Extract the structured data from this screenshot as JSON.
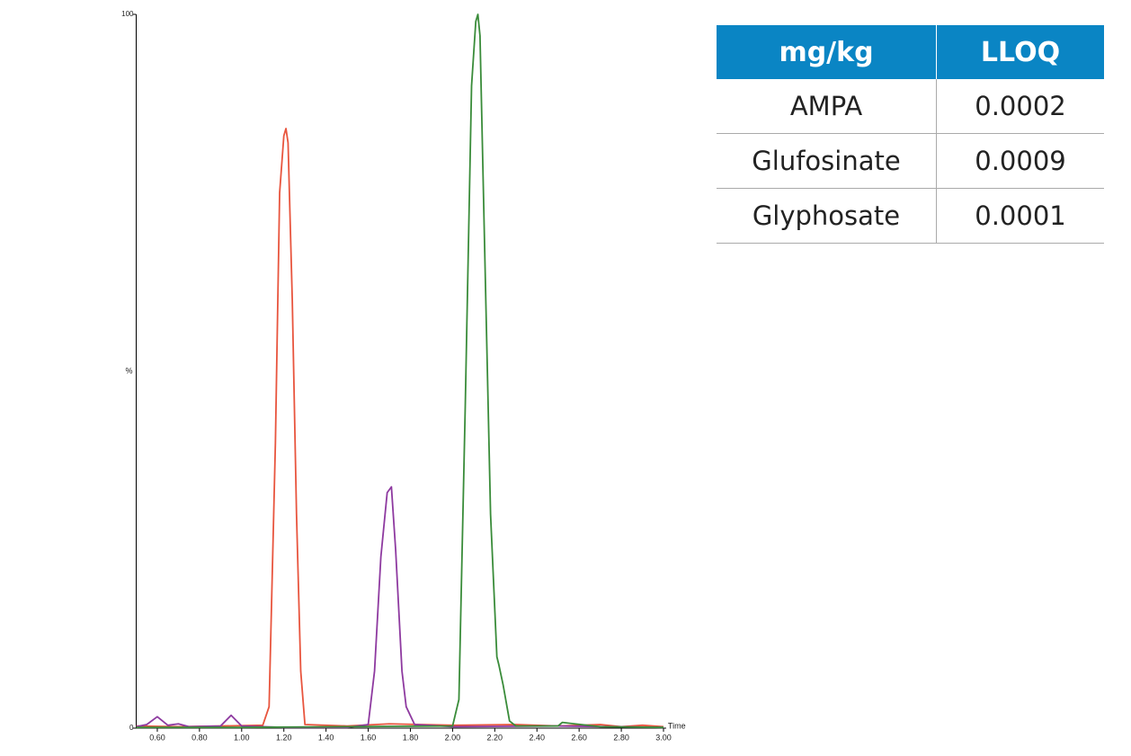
{
  "chart_data": {
    "type": "line",
    "xlabel": "Time",
    "ylabel": "%",
    "xlim": [
      0.5,
      3.0
    ],
    "ylim": [
      0,
      100
    ],
    "xticks": [
      {
        "value": 0.6,
        "label": "0.60"
      },
      {
        "value": 0.8,
        "label": "0.80"
      },
      {
        "value": 1.0,
        "label": "1.00"
      },
      {
        "value": 1.2,
        "label": "1.20"
      },
      {
        "value": 1.4,
        "label": "1.40"
      },
      {
        "value": 1.6,
        "label": "1.60"
      },
      {
        "value": 1.8,
        "label": "1.80"
      },
      {
        "value": 2.0,
        "label": "2.00"
      },
      {
        "value": 2.2,
        "label": "2.20"
      },
      {
        "value": 2.4,
        "label": "2.40"
      },
      {
        "value": 2.6,
        "label": "2.60"
      },
      {
        "value": 2.8,
        "label": "2.80"
      },
      {
        "value": 3.0,
        "label": "3.00"
      }
    ],
    "yticks": [
      0,
      100
    ],
    "series": [
      {
        "color": "#e8553e",
        "x": [
          0.5,
          0.7,
          0.9,
          1.1,
          1.13,
          1.16,
          1.18,
          1.2,
          1.21,
          1.22,
          1.24,
          1.26,
          1.28,
          1.3,
          1.5,
          1.7,
          2.0,
          2.3,
          2.5,
          2.7,
          2.8,
          2.9,
          3.0
        ],
        "values": [
          0.3,
          0.2,
          0.3,
          0.4,
          3,
          40,
          75,
          83,
          84,
          82,
          60,
          30,
          8,
          0.5,
          0.3,
          0.6,
          0.4,
          0.5,
          0.3,
          0.5,
          0.2,
          0.4,
          0.2
        ]
      },
      {
        "color": "#8e3aa0",
        "x": [
          0.5,
          0.55,
          0.6,
          0.65,
          0.7,
          0.75,
          0.9,
          0.95,
          1.0,
          1.2,
          1.5,
          1.6,
          1.63,
          1.66,
          1.69,
          1.71,
          1.73,
          1.76,
          1.78,
          1.82,
          2.0,
          2.5,
          3.0
        ],
        "values": [
          0.2,
          0.5,
          1.6,
          0.4,
          0.6,
          0.2,
          0.3,
          1.8,
          0.3,
          0.1,
          0.1,
          0.5,
          8,
          24,
          33,
          33.8,
          25,
          8,
          3,
          0.5,
          0.2,
          0.3,
          0.1
        ]
      },
      {
        "color": "#3a8c3a",
        "x": [
          0.5,
          1.0,
          1.5,
          2.0,
          2.03,
          2.06,
          2.09,
          2.11,
          2.12,
          2.13,
          2.15,
          2.18,
          2.21,
          2.22,
          2.24,
          2.27,
          2.3,
          2.5,
          2.52,
          2.7,
          3.0
        ],
        "values": [
          0.1,
          0.1,
          0.2,
          0.3,
          4,
          45,
          90,
          99,
          100,
          97,
          70,
          30,
          10,
          8.8,
          6,
          1,
          0.3,
          0.3,
          0.8,
          0.2,
          0.1
        ]
      }
    ]
  },
  "table": {
    "header": [
      "mg/kg",
      "LLOQ"
    ],
    "rows": [
      [
        "AMPA",
        "0.0002"
      ],
      [
        "Glufosinate",
        "0.0009"
      ],
      [
        "Glyphosate",
        "0.0001"
      ]
    ]
  }
}
